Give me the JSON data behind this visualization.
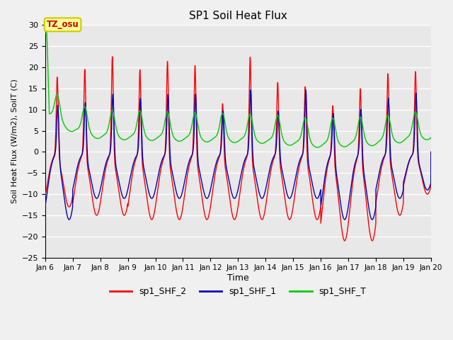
{
  "title": "SP1 Soil Heat Flux",
  "ylabel": "Soil Heat Flux (W/m2), SoilT (C)",
  "xlabel": "Time",
  "xlim_days": [
    6,
    20
  ],
  "ylim": [
    -25,
    30
  ],
  "yticks": [
    -25,
    -20,
    -15,
    -10,
    -5,
    0,
    5,
    10,
    15,
    20,
    25,
    30
  ],
  "xtick_labels": [
    "Jan 6",
    "Jan 7",
    "Jan 8",
    "Jan 9",
    "Jan 10",
    "Jan 11",
    "Jan 12",
    "Jan 13",
    "Jan 14",
    "Jan 15",
    "Jan 16",
    "Jan 17",
    "Jan 18",
    "Jan 19",
    "Jan 20"
  ],
  "line_colors": {
    "sp1_SHF_2": "#ff0000",
    "sp1_SHF_1": "#0000bb",
    "sp1_SHF_T": "#00cc00"
  },
  "annotation_text": "TZ_osu",
  "annotation_color": "#cc0000",
  "annotation_bg": "#ffff99",
  "annotation_border": "#cccc00",
  "plot_bg_color": "#e8e8e8",
  "fig_bg_color": "#f0f0f0",
  "grid_color": "#ffffff",
  "linewidth": 1.0
}
